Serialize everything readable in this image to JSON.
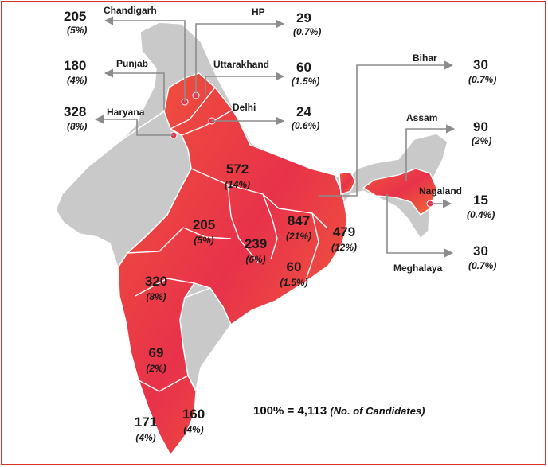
{
  "chart_data": {
    "type": "map",
    "colors": {
      "highlight": "#e8324a",
      "highlight_light": "#f36a36",
      "base": "#c9c9c9",
      "border": "#d9302c",
      "connector": "#8c8c8c"
    },
    "labels": {
      "chandigarh": {
        "name": "Chandigarh",
        "value": "205",
        "pct": "(5%)"
      },
      "hp": {
        "name": "HP",
        "value": "29",
        "pct": "(0.7%)"
      },
      "punjab": {
        "name": "Punjab",
        "value": "180",
        "pct": "(4%)"
      },
      "uttarakhand": {
        "name": "Uttarakhand",
        "value": "60",
        "pct": "(1.5%)"
      },
      "haryana": {
        "name": "Haryana",
        "value": "328",
        "pct": "(8%)"
      },
      "delhi": {
        "name": "Delhi",
        "value": "24",
        "pct": "(0.6%)"
      },
      "bihar": {
        "name": "Bihar",
        "value": "30",
        "pct": "(0.7%)"
      },
      "assam": {
        "name": "Assam",
        "value": "90",
        "pct": "(2%)"
      },
      "nagaland": {
        "name": "Nagaland",
        "value": "15",
        "pct": "(0.4%)"
      },
      "meghalaya": {
        "name": "Meghalaya",
        "value": "30",
        "pct": "(0.7%)"
      },
      "up": {
        "value": "572",
        "pct": "(14%)"
      },
      "mp": {
        "value": "205",
        "pct": "(5%)"
      },
      "chhattisgarh": {
        "value": "239",
        "pct": "(6%)"
      },
      "jharkhand": {
        "value": "847",
        "pct": "(21%)"
      },
      "wb": {
        "value": "479",
        "pct": "(12%)"
      },
      "odisha": {
        "value": "60",
        "pct": "(1.5%)"
      },
      "maharashtra": {
        "value": "320",
        "pct": "(8%)"
      },
      "karnataka": {
        "value": "69",
        "pct": "(2%)"
      },
      "tn": {
        "value": "160",
        "pct": "(4%)"
      },
      "kerala": {
        "value": "171",
        "pct": "(4%)"
      }
    },
    "total": {
      "text": "100% = 4,113",
      "note": "(No. of Candidates)"
    }
  }
}
